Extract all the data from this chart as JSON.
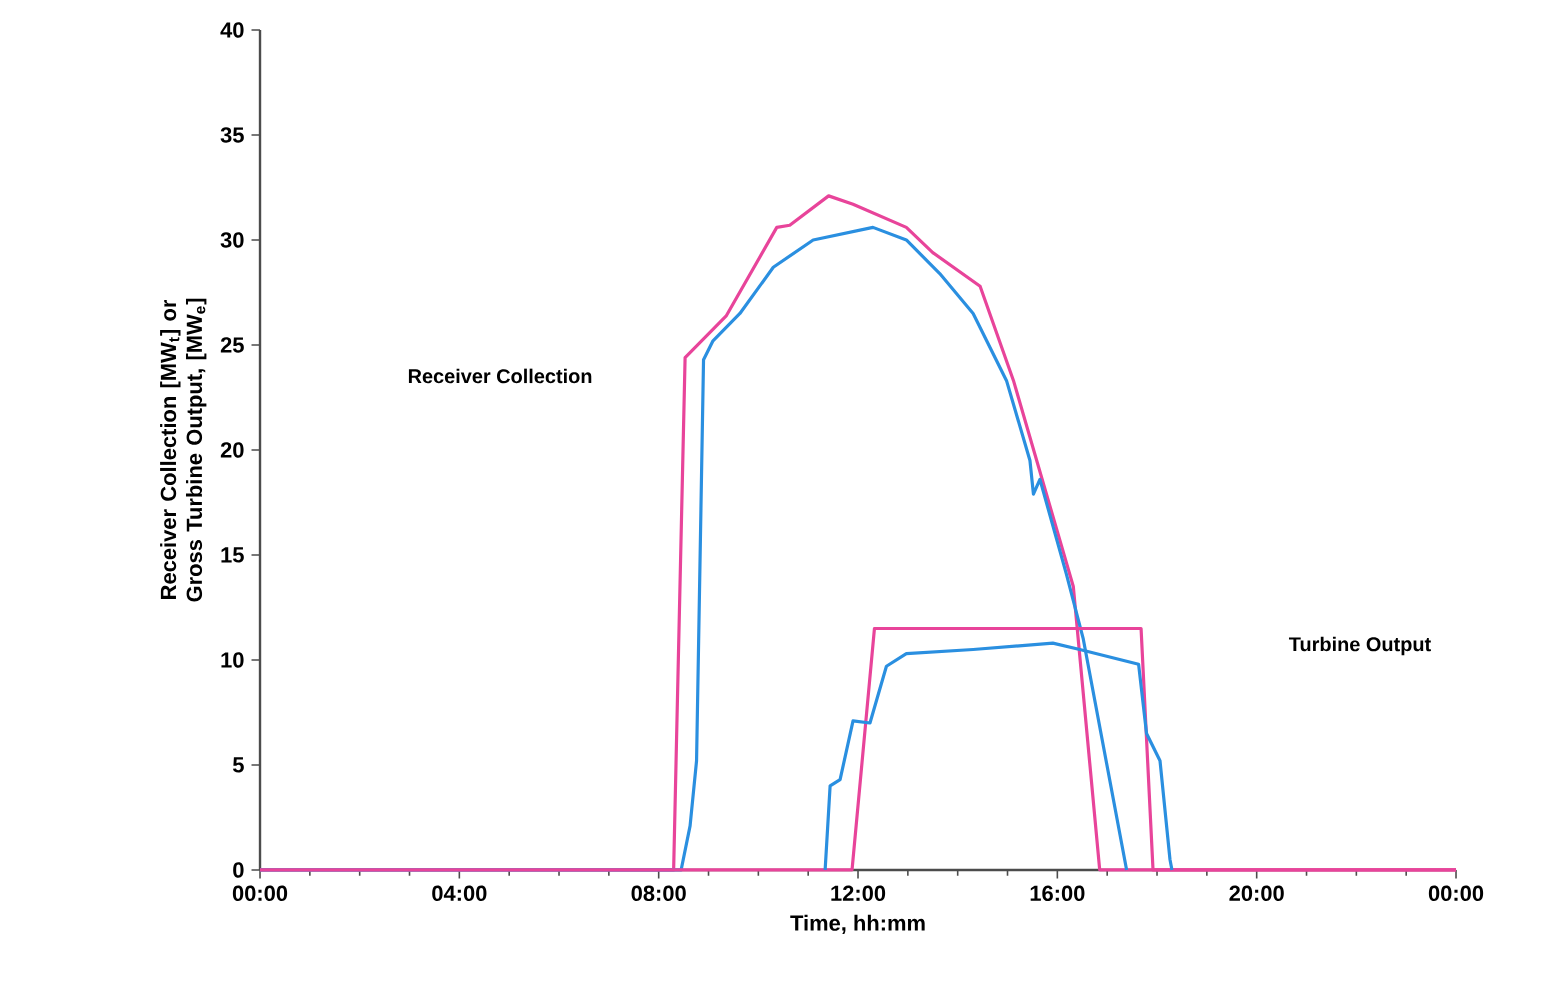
{
  "chart_data": {
    "type": "line",
    "xlabel": "Time, hh:mm",
    "ylabel": "Receiver Collection [MW$_{t}$] or Gross Turbine Output, [MW$_{e}$]",
    "xlim": [
      0,
      24
    ],
    "ylim": [
      0,
      40
    ],
    "xticks": [
      {
        "value": 0,
        "label": "00:00"
      },
      {
        "value": 4,
        "label": "04:00"
      },
      {
        "value": 8,
        "label": "08:00"
      },
      {
        "value": 12,
        "label": "12:00"
      },
      {
        "value": 16,
        "label": "16:00"
      },
      {
        "value": 20,
        "label": "20:00"
      },
      {
        "value": 24,
        "label": "00:00"
      }
    ],
    "yticks": [
      0,
      5,
      10,
      15,
      20,
      25,
      30,
      35,
      40
    ],
    "grid": false,
    "marker": "none",
    "line_style": "solid",
    "annotations": [
      "Receiver Collection",
      "Turbine Output"
    ],
    "series": [
      {
        "color": "#e8449a",
        "x": [
          0,
          8.3,
          8.53,
          9.36,
          10.37,
          10.63,
          11.41,
          11.9,
          12.97,
          13.5,
          14.45,
          15.12,
          16.32,
          16.85,
          24
        ],
        "values": [
          0,
          0,
          24.4,
          26.4,
          30.6,
          30.7,
          32.1,
          31.7,
          30.6,
          29.4,
          27.8,
          23.3,
          13.5,
          0,
          0
        ]
      },
      {
        "color": "#2a8fe0",
        "x": [
          0,
          8.45,
          8.63,
          8.76,
          8.9,
          9.09,
          9.63,
          10.3,
          11.1,
          12.3,
          12.97,
          13.64,
          14.31,
          14.98,
          15.45,
          15.52,
          15.65,
          16.18,
          16.52,
          17.39
        ],
        "values": [
          0,
          0,
          2.1,
          5.2,
          24.3,
          25.2,
          26.5,
          28.7,
          30,
          30.6,
          30,
          28.4,
          26.5,
          23.3,
          19.5,
          17.9,
          18.6,
          14.1,
          11.0,
          0
        ]
      },
      {
        "color": "#e8449a",
        "x": [
          0,
          11.88,
          12.33,
          17.68,
          17.92,
          24
        ],
        "values": [
          0,
          0,
          11.5,
          11.5,
          0,
          0
        ]
      },
      {
        "color": "#2a8fe0",
        "x": [
          11.34,
          11.44,
          11.64,
          11.9,
          12.24,
          12.57,
          12.97,
          14.31,
          15.91,
          16.45,
          17.63,
          17.79,
          18.06,
          18.26,
          18.3
        ],
        "values": [
          0,
          4.0,
          4.3,
          7.1,
          7.0,
          9.7,
          10.3,
          10.5,
          10.8,
          10.5,
          9.8,
          6.5,
          5.2,
          0.5,
          0
        ]
      }
    ]
  }
}
